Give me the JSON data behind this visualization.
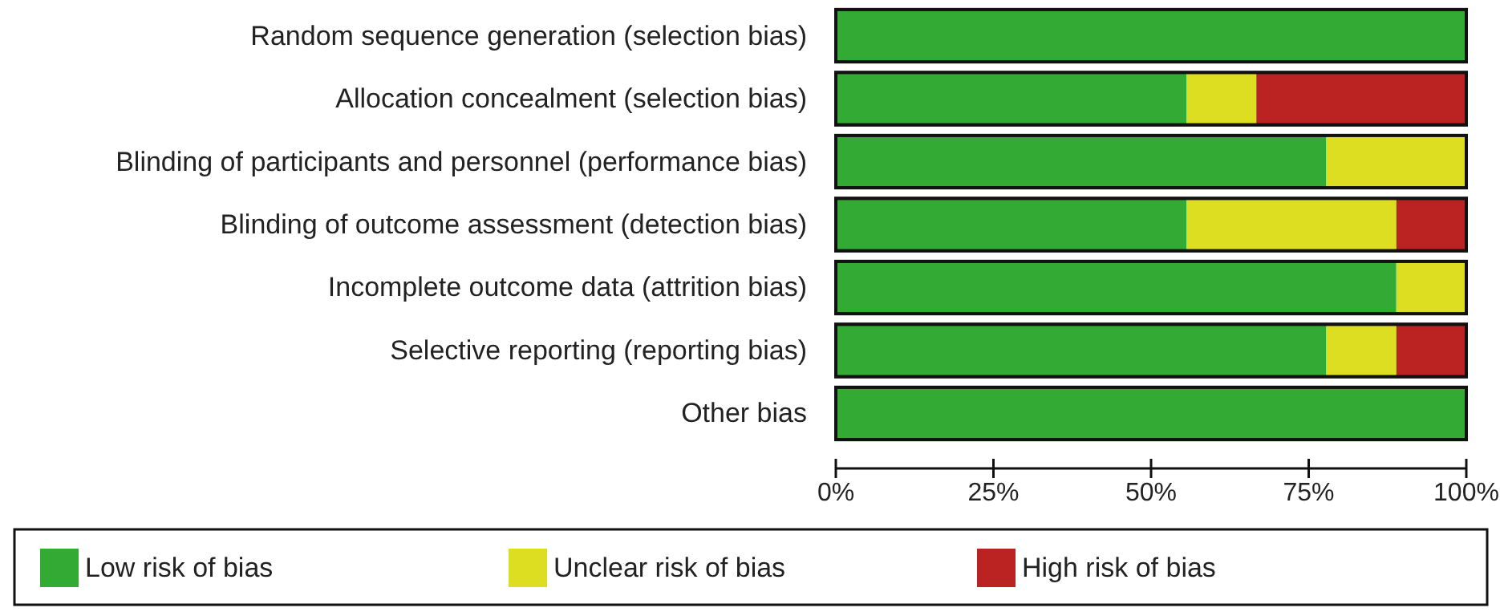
{
  "chart_data": {
    "type": "bar",
    "orientation": "horizontal",
    "stacked": true,
    "categories": [
      "Random sequence generation (selection bias)",
      "Allocation concealment (selection bias)",
      "Blinding of participants and personnel (performance bias)",
      "Blinding of outcome assessment (detection bias)",
      "Incomplete outcome data (attrition bias)",
      "Selective reporting (reporting bias)",
      "Other bias"
    ],
    "series": [
      {
        "name": "Low risk of bias",
        "color": "#33aa33",
        "values": [
          100,
          55.6,
          77.8,
          55.6,
          88.9,
          77.8,
          100
        ]
      },
      {
        "name": "Unclear risk of bias",
        "color": "#dddd22",
        "values": [
          0,
          11.1,
          22.2,
          33.3,
          11.1,
          11.1,
          0
        ]
      },
      {
        "name": "High risk of bias",
        "color": "#bb2222",
        "values": [
          0,
          33.3,
          0,
          11.1,
          0,
          11.1,
          0
        ]
      }
    ],
    "xlim": [
      0,
      100
    ],
    "xticks": [
      {
        "value": 0,
        "label": "0%"
      },
      {
        "value": 25,
        "label": "25%"
      },
      {
        "value": 50,
        "label": "50%"
      },
      {
        "value": 75,
        "label": "75%"
      },
      {
        "value": 100,
        "label": "100%"
      }
    ],
    "grid": false,
    "legend": "bottom"
  }
}
